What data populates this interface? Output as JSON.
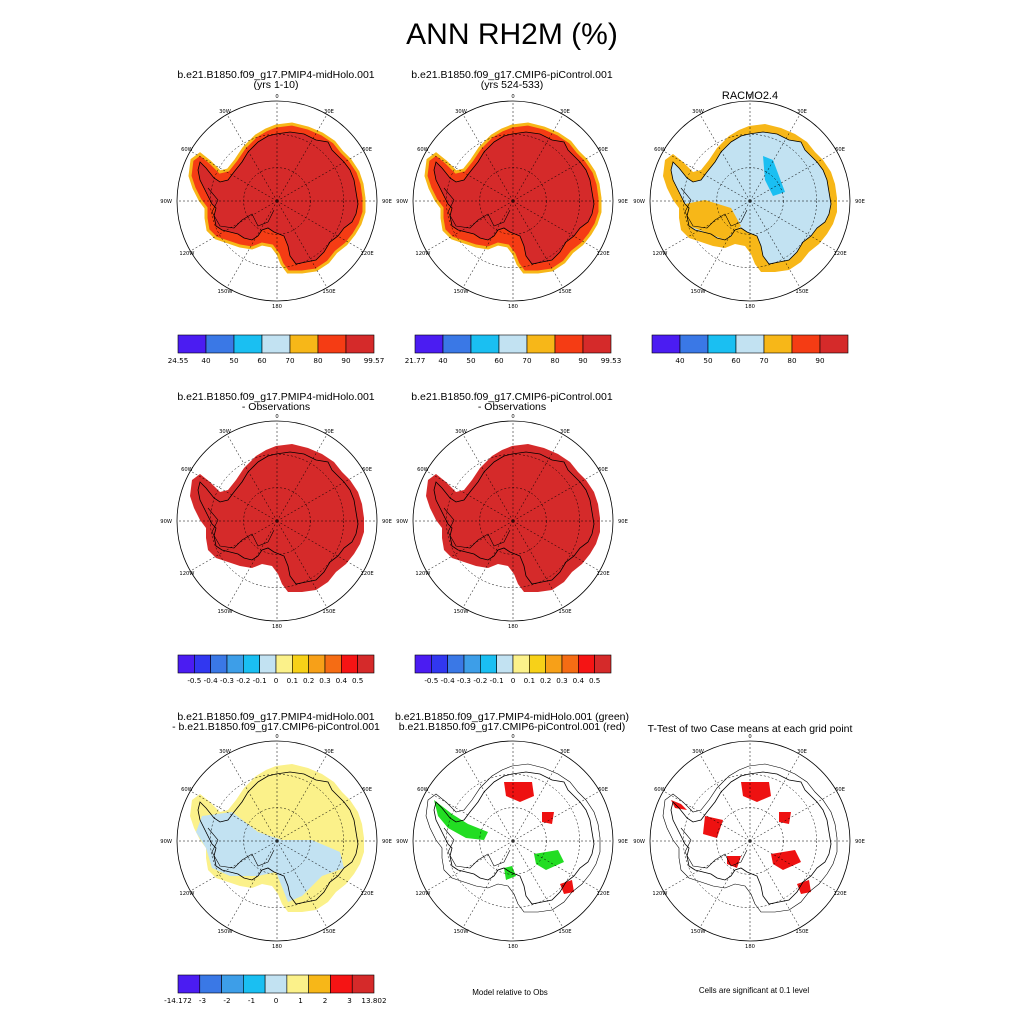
{
  "title": "ANN RH2M (%)",
  "panel_titles": {
    "p1": [
      "b.e21.B1850.f09_g17.PMIP4-midHolo.001",
      "(yrs 1-10)"
    ],
    "p2": [
      "b.e21.B1850.f09_g17.CMIP6-piControl.001",
      "(yrs 524-533)"
    ],
    "p3": [
      "RACMO2.4",
      ""
    ],
    "p4": [
      "b.e21.B1850.f09_g17.PMIP4-midHolo.001",
      "- Observations"
    ],
    "p5": [
      "b.e21.B1850.f09_g17.CMIP6-piControl.001",
      "- Observations"
    ],
    "p6": [
      "b.e21.B1850.f09_g17.PMIP4-midHolo.001",
      "- b.e21.B1850.f09_g17.CMIP6-piControl.001"
    ],
    "p7": [
      "b.e21.B1850.f09_g17.PMIP4-midHolo.001 (green)",
      "b.e21.B1850.f09_g17.CMIP6-piControl.001 (red)"
    ],
    "p8": [
      "T-Test of two Case means at each grid point",
      ""
    ]
  },
  "notes": {
    "model_relative": "Model relative to Obs",
    "significance": "Cells are significant at 0.1 level"
  },
  "map_labels": [
    "0",
    "30E",
    "60E",
    "90E",
    "120E",
    "150E",
    "180",
    "150W",
    "120W",
    "90W",
    "60W",
    "30W"
  ],
  "chart_data": [
    {
      "type": "heatmap",
      "name": "case1",
      "colorbar": {
        "labels": [
          "24.55",
          "40",
          "50",
          "60",
          "70",
          "80",
          "90",
          "99.57"
        ],
        "colors": [
          "#4b1cf2",
          "#3a78e6",
          "#1abff2",
          "#c2e2f2",
          "#f7b718",
          "#f53c14",
          "#d52a2a"
        ]
      }
    },
    {
      "type": "heatmap",
      "name": "case2",
      "colorbar": {
        "labels": [
          "21.77",
          "40",
          "50",
          "60",
          "70",
          "80",
          "90",
          "99.53"
        ],
        "colors": [
          "#4b1cf2",
          "#3a78e6",
          "#1abff2",
          "#c2e2f2",
          "#f7b718",
          "#f53c14",
          "#d52a2a"
        ]
      }
    },
    {
      "type": "heatmap",
      "name": "obs",
      "colorbar": {
        "labels": [
          "",
          "40",
          "50",
          "60",
          "70",
          "80",
          "90",
          ""
        ],
        "colors": [
          "#4b1cf2",
          "#3a78e6",
          "#1abff2",
          "#c2e2f2",
          "#f7b718",
          "#f53c14",
          "#d52a2a"
        ]
      }
    },
    {
      "type": "heatmap",
      "name": "case1-obs",
      "colorbar": {
        "labels": [
          "",
          "-0.5",
          "-0.4",
          "-0.3",
          "-0.2",
          "-0.1",
          "0",
          "0.1",
          "0.2",
          "0.3",
          "0.4",
          "0.5",
          ""
        ],
        "colors": [
          "#4b1cf2",
          "#3137f0",
          "#3a78e6",
          "#3d9ee8",
          "#1abff2",
          "#c2e2f2",
          "#fbf18a",
          "#f7d118",
          "#f7a018",
          "#f56c14",
          "#f51414",
          "#d52a2a"
        ]
      }
    },
    {
      "type": "heatmap",
      "name": "case2-obs",
      "colorbar": {
        "labels": [
          "",
          "-0.5",
          "-0.4",
          "-0.3",
          "-0.2",
          "-0.1",
          "0",
          "0.1",
          "0.2",
          "0.3",
          "0.4",
          "0.5",
          ""
        ],
        "colors": [
          "#4b1cf2",
          "#3137f0",
          "#3a78e6",
          "#3d9ee8",
          "#1abff2",
          "#c2e2f2",
          "#fbf18a",
          "#f7d118",
          "#f7a018",
          "#f56c14",
          "#f51414",
          "#d52a2a"
        ]
      }
    },
    {
      "type": "heatmap",
      "name": "case1-case2",
      "colorbar": {
        "labels": [
          "-14.172",
          "-3",
          "-2",
          "-1",
          "0",
          "1",
          "2",
          "3",
          "13.802"
        ],
        "colors": [
          "#4b1cf2",
          "#3a78e6",
          "#3d9ee8",
          "#1abff2",
          "#c2e2f2",
          "#fbf18a",
          "#f7b718",
          "#f51414",
          "#d52a2a"
        ]
      }
    }
  ]
}
